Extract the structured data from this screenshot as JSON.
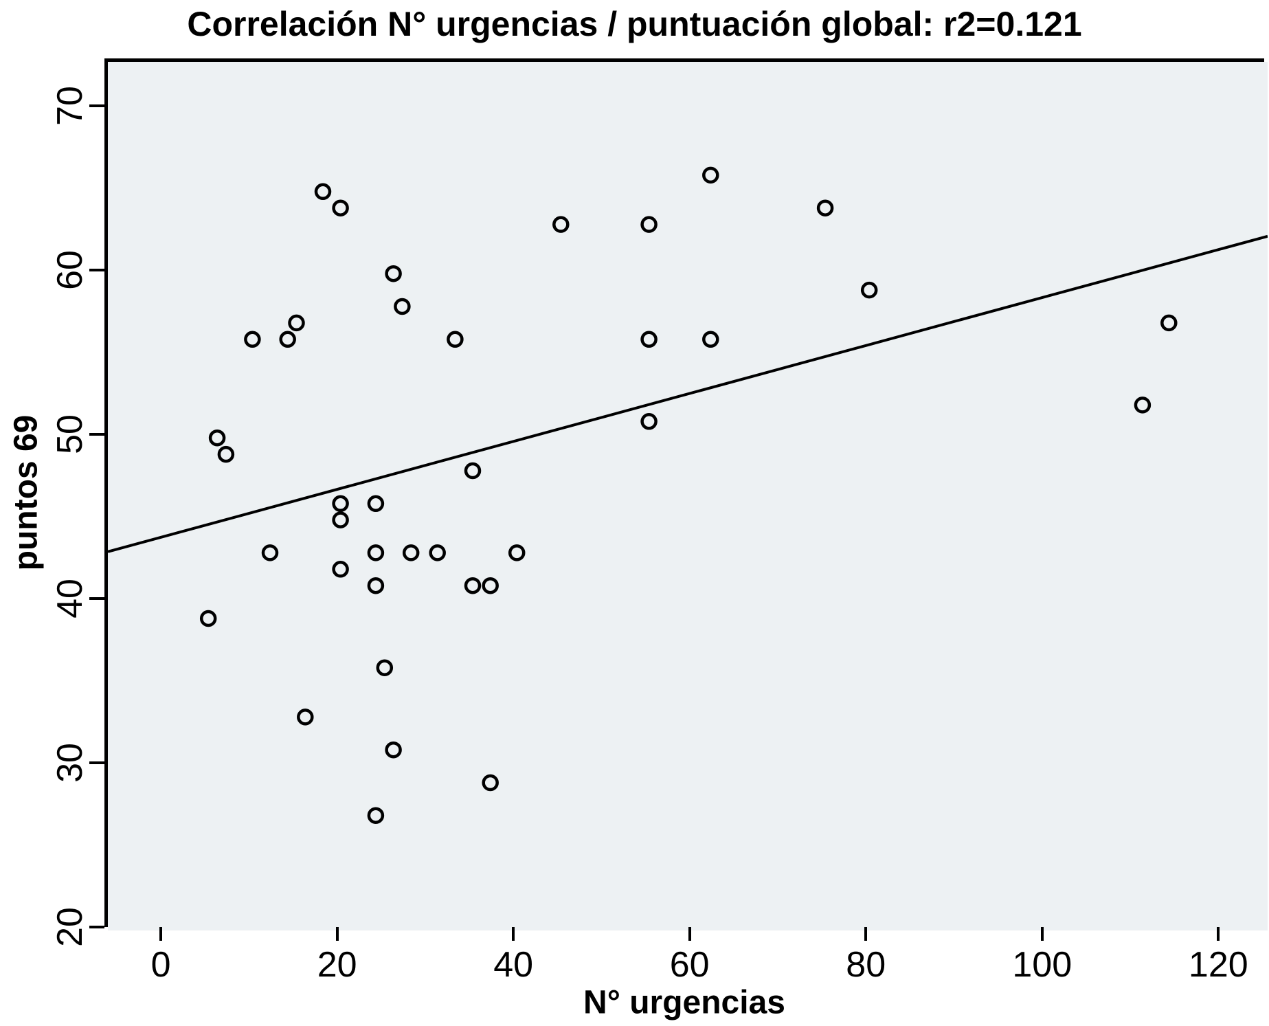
{
  "chart_data": {
    "type": "scatter",
    "title": "Correlación N° urgencias / puntuación global: r2=0.121",
    "xlabel": "N° urgencias",
    "ylabel": "puntos 69",
    "r_squared_label": "r2=0.121",
    "xlim": [
      -6.4,
      125.2
    ],
    "ylim": [
      20,
      72.9
    ],
    "xticks": [
      0,
      20,
      40,
      60,
      80,
      100,
      120
    ],
    "yticks": [
      20,
      30,
      40,
      50,
      60,
      70
    ],
    "grid": false,
    "legend": null,
    "points": [
      [
        5,
        39
      ],
      [
        6,
        50
      ],
      [
        7,
        49
      ],
      [
        10,
        56
      ],
      [
        12,
        43
      ],
      [
        14,
        56
      ],
      [
        15,
        57
      ],
      [
        16,
        33
      ],
      [
        18,
        65
      ],
      [
        20,
        64
      ],
      [
        20,
        46
      ],
      [
        20,
        45
      ],
      [
        20,
        42
      ],
      [
        24,
        46
      ],
      [
        24,
        43
      ],
      [
        24,
        41
      ],
      [
        24,
        27
      ],
      [
        25,
        36
      ],
      [
        26,
        60
      ],
      [
        26,
        31
      ],
      [
        27,
        58
      ],
      [
        28,
        43
      ],
      [
        31,
        43
      ],
      [
        33,
        56
      ],
      [
        35,
        48
      ],
      [
        35,
        41
      ],
      [
        37,
        41
      ],
      [
        37,
        29
      ],
      [
        40,
        43
      ],
      [
        45,
        63
      ],
      [
        55,
        63
      ],
      [
        55,
        56
      ],
      [
        55,
        51
      ],
      [
        62,
        66
      ],
      [
        62,
        56
      ],
      [
        75,
        64
      ],
      [
        80,
        59
      ],
      [
        111,
        52
      ],
      [
        114,
        57
      ]
    ],
    "trendline": {
      "slope": 0.146,
      "intercept": 44.0
    },
    "marker": {
      "shape": "circle-open",
      "radius": 10,
      "stroke_width": 4.5
    },
    "colors": {
      "plot_bg": "#edf1f3",
      "marker_stroke": "#000000",
      "trendline": "#000000",
      "axis": "#000000",
      "text": "#000000"
    }
  }
}
